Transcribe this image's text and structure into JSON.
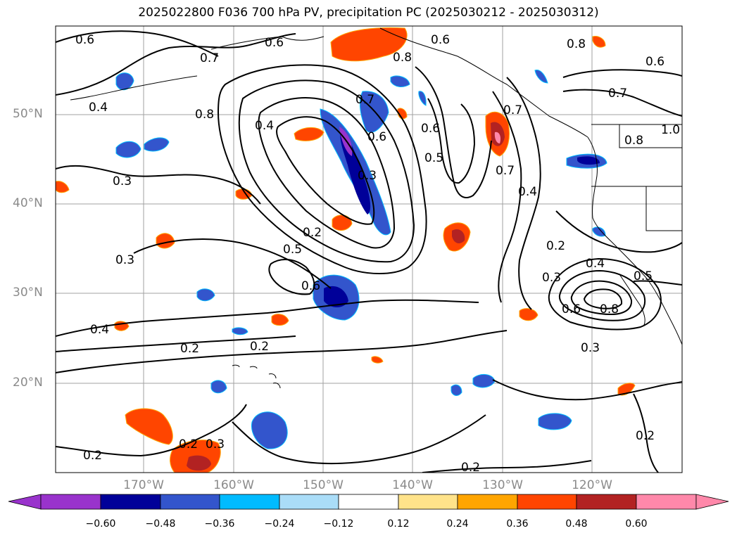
{
  "title": "2025022800 F036 700 hPa PV, precipitation PC (2025030212 - 2025030312)",
  "map": {
    "lat_labels": [
      "50°N",
      "40°N",
      "30°N",
      "20°N"
    ],
    "lon_labels": [
      "170°W",
      "160°W",
      "150°W",
      "140°W",
      "130°W",
      "120°W"
    ],
    "contour_labels": [
      "0.6",
      "0.6",
      "0.7",
      "0.8",
      "0.4",
      "0.8",
      "0.4",
      "0.3",
      "0.3",
      "0.7",
      "0.6",
      "0.3",
      "0.6",
      "0.5",
      "0.7",
      "0.4",
      "0.8",
      "0.6",
      "0.7",
      "0.7",
      "0.8",
      "0.6",
      "1.0",
      "0.2",
      "0.5",
      "0.6",
      "0.2",
      "0.3",
      "0.4",
      "0.6",
      "0.8",
      "0.5",
      "0.4",
      "0.2",
      "0.2",
      "0.3",
      "0.2",
      "0.2",
      "0.3",
      "0.2",
      "0.2"
    ]
  },
  "colorbar": {
    "ticks": [
      "−0.60",
      "−0.48",
      "−0.36",
      "−0.24",
      "−0.12",
      "0.12",
      "0.24",
      "0.36",
      "0.48",
      "0.60"
    ],
    "colors": [
      "#9933cc",
      "#000099",
      "#3355cc",
      "#00bbff",
      "#aaddf8",
      "#ffffff",
      "#ffe38a",
      "#ffa500",
      "#ff4500",
      "#b22222",
      "#ff88aa"
    ]
  }
}
